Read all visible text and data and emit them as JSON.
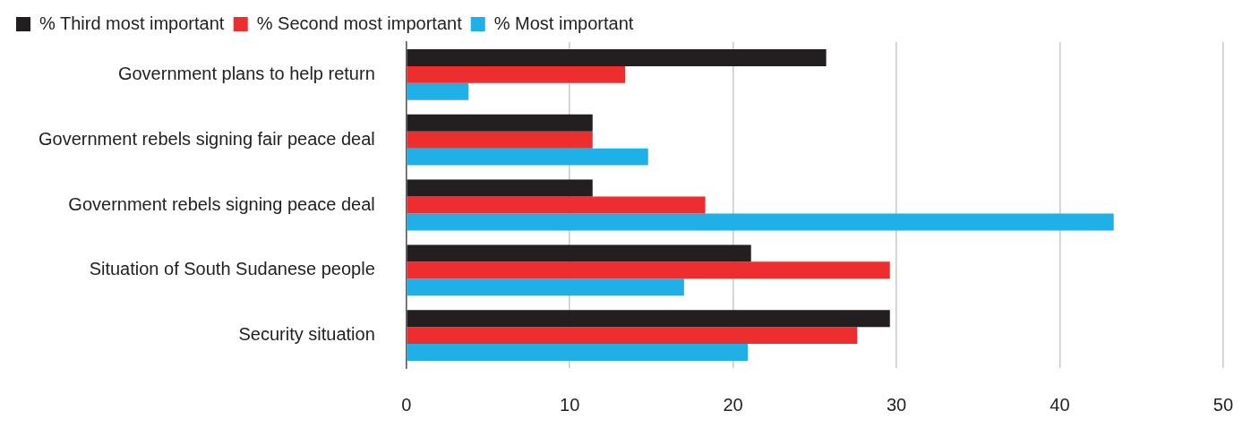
{
  "chart_data": {
    "type": "bar",
    "orientation": "horizontal",
    "categories": [
      "Government plans to help return",
      "Government rebels signing fair peace deal",
      "Government rebels signing peace deal",
      "Situation of South Sudanese people",
      "Security situation"
    ],
    "series": [
      {
        "name": "% Third most important",
        "color": "#231f20",
        "values": [
          25.7,
          11.4,
          11.4,
          21.1,
          29.6
        ]
      },
      {
        "name": "% Second most important",
        "color": "#ee2d2f",
        "values": [
          13.4,
          11.4,
          18.3,
          29.6,
          27.6
        ]
      },
      {
        "name": "% Most important",
        "color": "#1eb0e6",
        "values": [
          3.8,
          14.8,
          43.3,
          17.0,
          20.9
        ]
      }
    ],
    "xlim": [
      0,
      50
    ],
    "xticks": [
      0,
      10,
      20,
      30,
      40,
      50
    ],
    "grid": "x",
    "legend": "top left"
  }
}
